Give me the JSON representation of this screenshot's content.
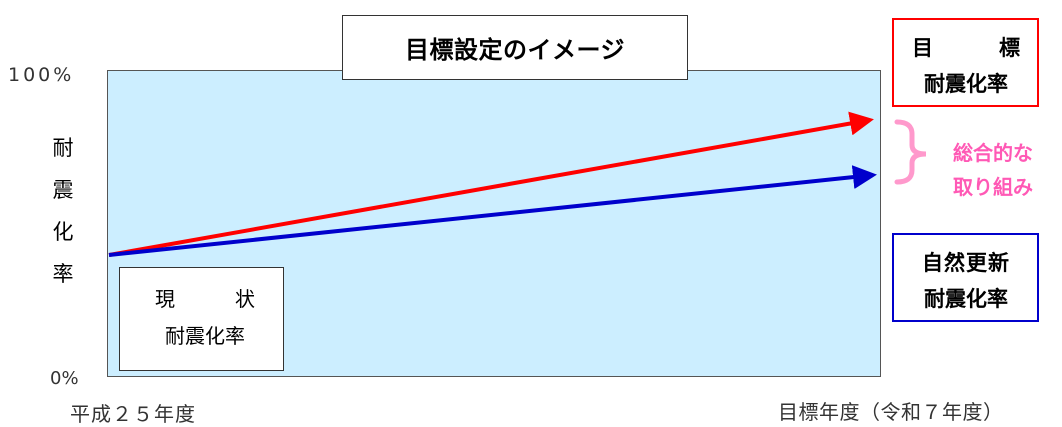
{
  "title": "目標設定のイメージ",
  "y_axis": {
    "top_label": "100%",
    "bottom_label": "0%",
    "chars": [
      "耐",
      "震",
      "化",
      "率"
    ]
  },
  "x_axis": {
    "start_label": "平成２５年度",
    "end_label": "目標年度（令和７年度）"
  },
  "current_box": {
    "line1_left": "現",
    "line1_right": "状",
    "line2": "耐震化率"
  },
  "target_box": {
    "line1_left": "目",
    "line1_right": "標",
    "line2": "耐震化率"
  },
  "natural_box": {
    "line1": "自然更新",
    "line2": "耐震化率"
  },
  "effort_label": {
    "line1": "総合的な",
    "line2": "取り組み"
  },
  "colors": {
    "plot_background": "#cceeff",
    "target_line": "#ff0000",
    "natural_line": "#0000cc",
    "effort_text": "#ff59b5",
    "brace": "#ff99cc"
  }
}
